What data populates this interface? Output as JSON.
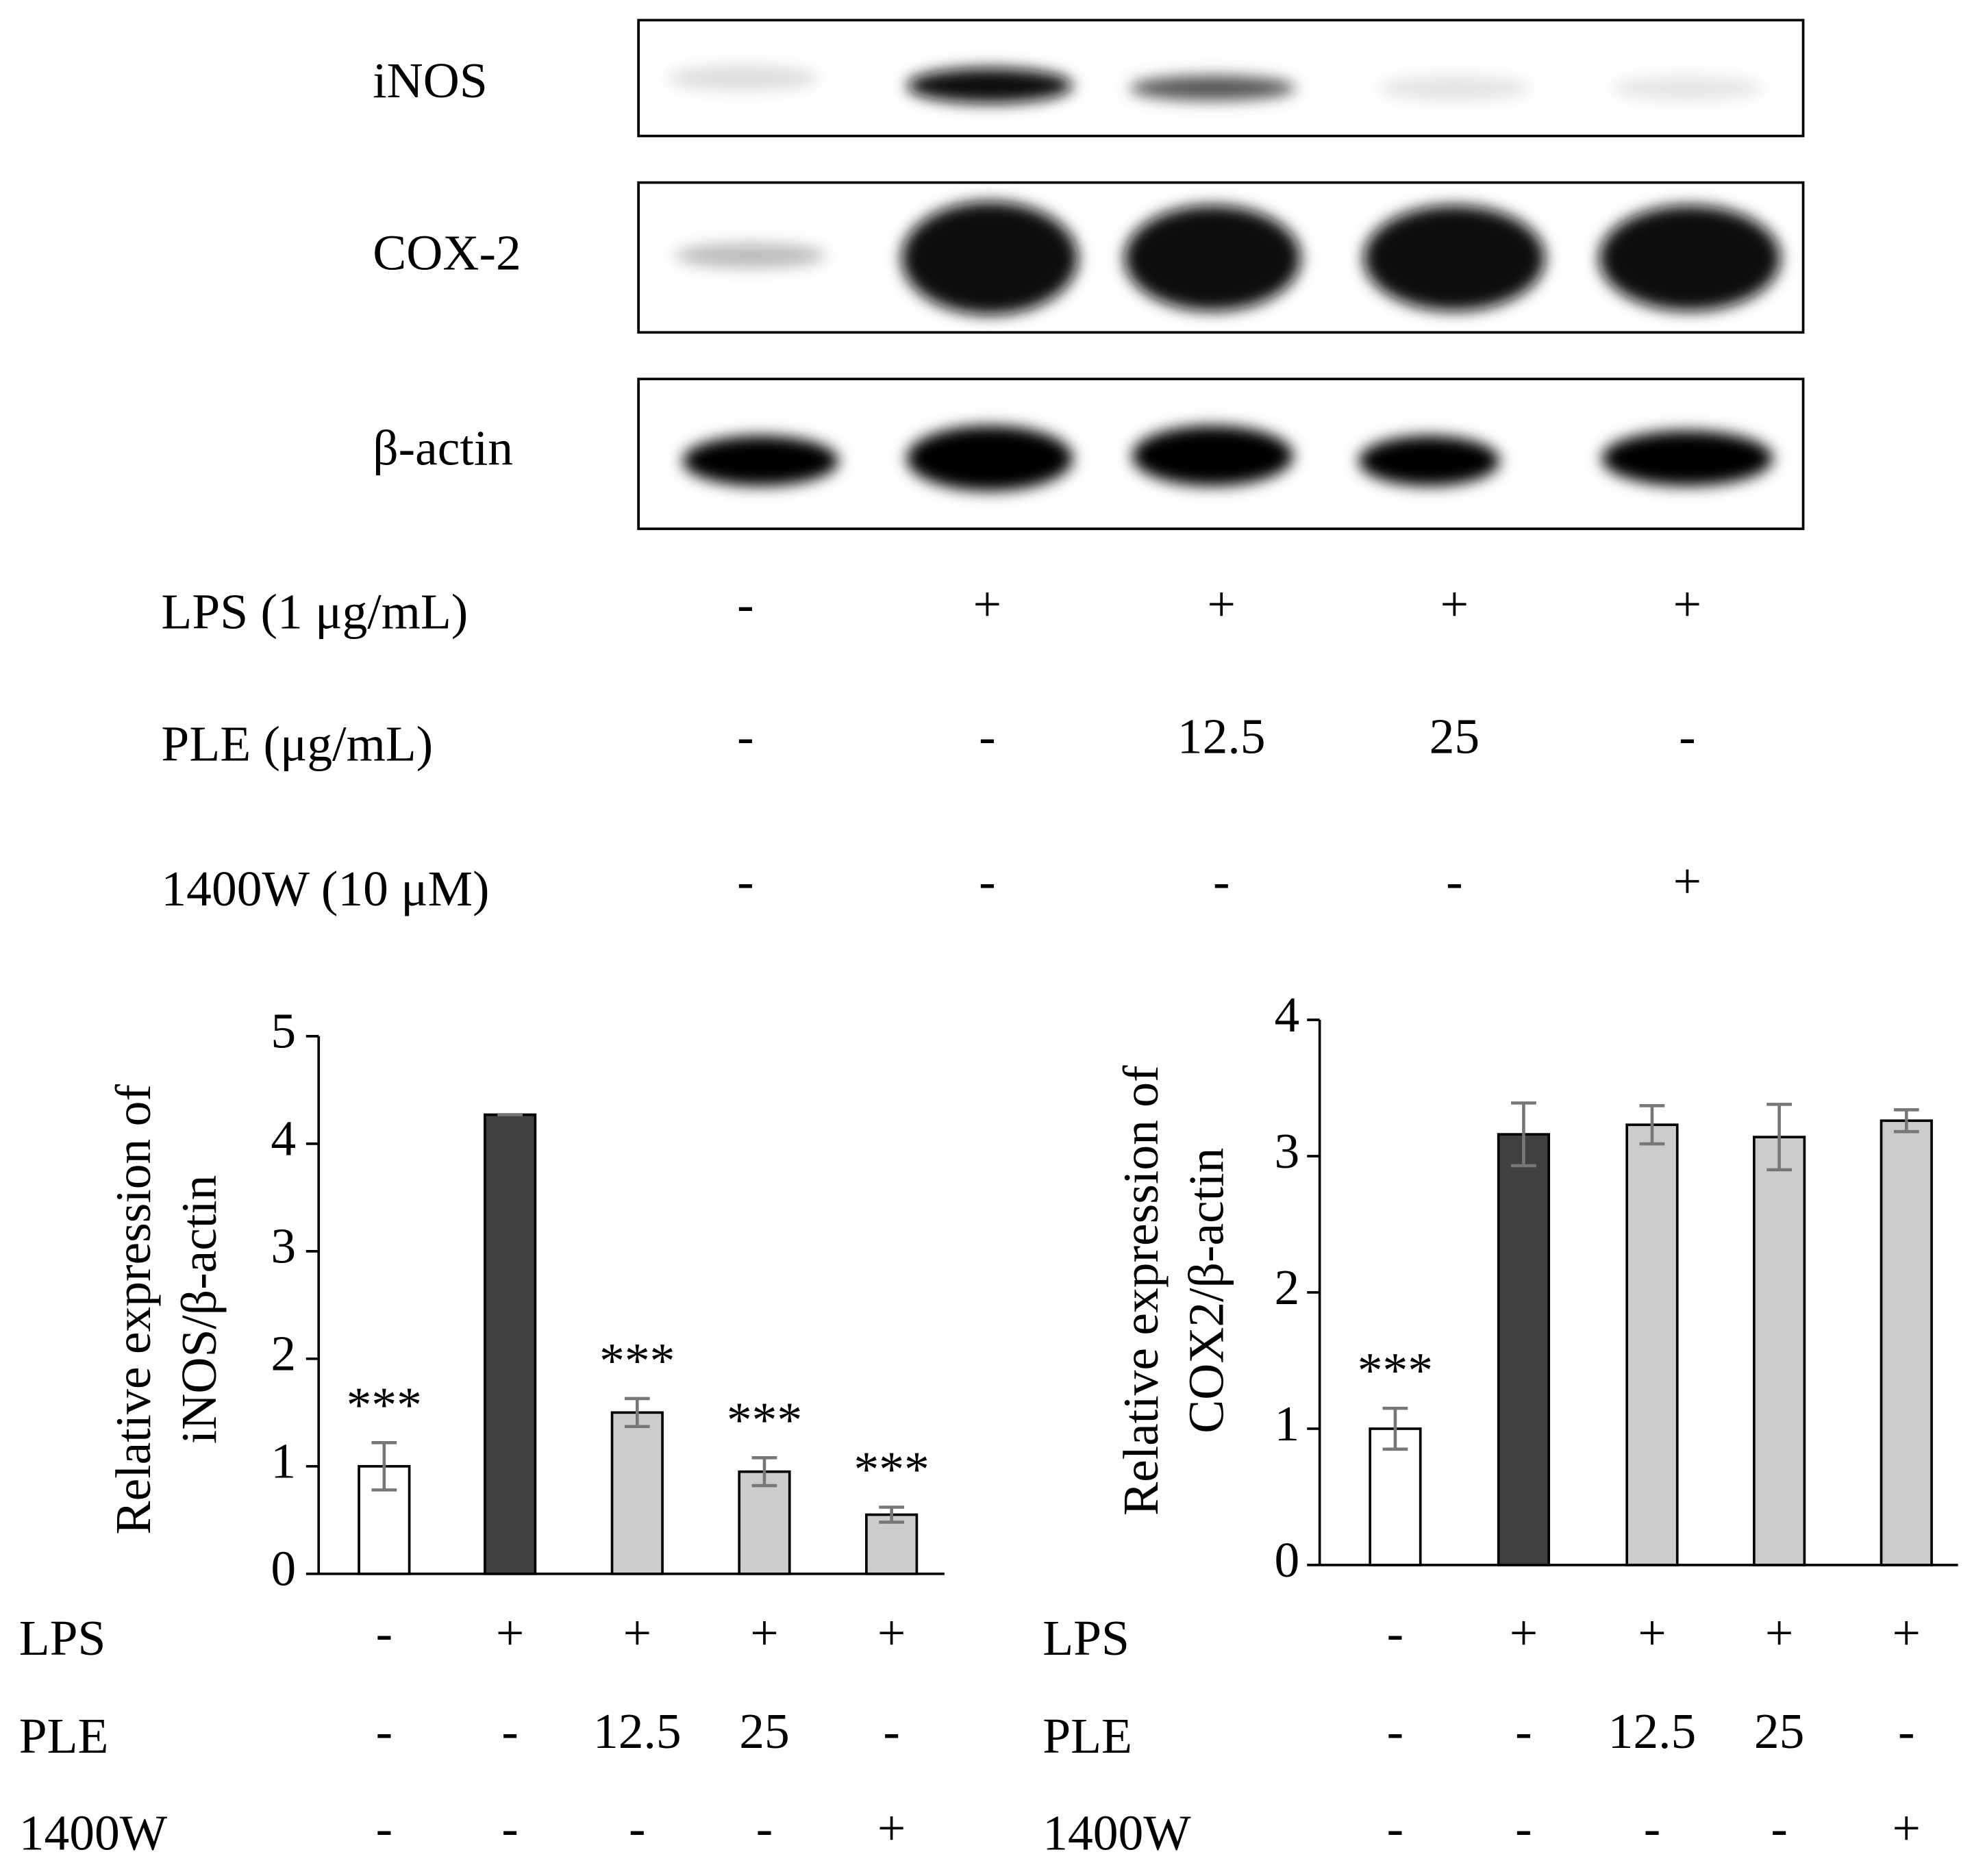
{
  "blot": {
    "proteins": [
      "iNOS",
      "COX-2",
      "β-actin"
    ],
    "conditions": [
      {
        "label": "LPS (1 μg/mL)",
        "values": [
          "-",
          "+",
          "+",
          "+",
          "+"
        ]
      },
      {
        "label": "PLE (μg/mL)",
        "values": [
          "-",
          "-",
          "12.5",
          "25",
          "-"
        ]
      },
      {
        "label": "1400W (10 μM)",
        "values": [
          "-",
          "-",
          "-",
          "-",
          "+"
        ]
      }
    ]
  },
  "chart_data": [
    {
      "type": "bar",
      "ylabel": [
        "Relative expression of",
        "iNOS/β-actin"
      ],
      "values": [
        1.0,
        4.27,
        1.5,
        0.95,
        0.55
      ],
      "errors": [
        0.22,
        0,
        0.13,
        0.13,
        0.07
      ],
      "colors": [
        "#ffffff",
        "#404040",
        "#cccccc",
        "#cccccc",
        "#cccccc"
      ],
      "annotations": [
        "***",
        null,
        "***",
        "***",
        "***"
      ],
      "ylim": [
        0,
        5
      ],
      "yticks": [
        0,
        1,
        2,
        3,
        4,
        5
      ],
      "conditions": [
        {
          "label": "LPS",
          "values": [
            "-",
            "+",
            "+",
            "+",
            "+"
          ]
        },
        {
          "label": "PLE",
          "values": [
            "-",
            "-",
            "12.5",
            "25",
            "-"
          ]
        },
        {
          "label": "1400W",
          "values": [
            "-",
            "-",
            "-",
            "-",
            "+"
          ]
        }
      ]
    },
    {
      "type": "bar",
      "ylabel": [
        "Relative expression of",
        "COX2/β-actin"
      ],
      "values": [
        1.0,
        3.16,
        3.23,
        3.14,
        3.26
      ],
      "errors": [
        0.15,
        0.23,
        0.14,
        0.24,
        0.08
      ],
      "colors": [
        "#ffffff",
        "#404040",
        "#cccccc",
        "#cccccc",
        "#cccccc"
      ],
      "annotations": [
        "***",
        null,
        null,
        null,
        null
      ],
      "ylim": [
        0,
        4
      ],
      "yticks": [
        0,
        1,
        2,
        3,
        4
      ],
      "conditions": [
        {
          "label": "LPS",
          "values": [
            "-",
            "+",
            "+",
            "+",
            "+"
          ]
        },
        {
          "label": "PLE",
          "values": [
            "-",
            "-",
            "12.5",
            "25",
            "-"
          ]
        },
        {
          "label": "1400W",
          "values": [
            "-",
            "-",
            "-",
            "-",
            "+"
          ]
        }
      ]
    }
  ]
}
